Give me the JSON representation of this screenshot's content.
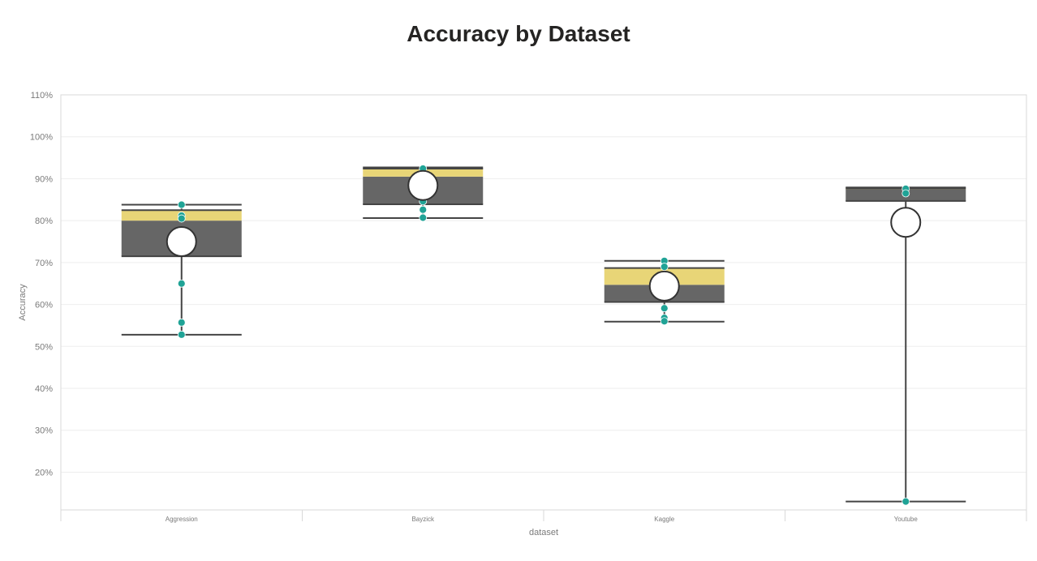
{
  "title": "Accuracy by Dataset",
  "colors": {
    "box": "#666666",
    "upper_box": "#e8d577",
    "whisker": "#444444",
    "point": "#20a396",
    "mean_fill": "#ffffff",
    "grid": "#eeeeee",
    "plot_border": "#d9d9d9"
  },
  "chart_data": {
    "type": "box",
    "title": "Accuracy by Dataset",
    "xlabel": "dataset",
    "ylabel": "Accuracy",
    "ylim": [
      11,
      110
    ],
    "yticks": [
      "20%",
      "30%",
      "40%",
      "50%",
      "60%",
      "70%",
      "80%",
      "90%",
      "100%",
      "110%"
    ],
    "ytick_values": [
      20,
      30,
      40,
      50,
      60,
      70,
      80,
      90,
      100,
      110
    ],
    "grid": true,
    "categories": [
      "Aggression",
      "Bayzick",
      "Kaggle",
      "Youtube"
    ],
    "boxes": [
      {
        "category": "Aggression",
        "min": 52.8,
        "q1": 71.5,
        "median": 80.0,
        "q3": 82.5,
        "max": 83.8,
        "mean": 75.0,
        "points": [
          83.8,
          81.2,
          80.5,
          65.0,
          55.7,
          52.8
        ]
      },
      {
        "category": "Bayzick",
        "min": 80.6,
        "q1": 83.9,
        "median": 90.5,
        "q3": 92.4,
        "max": 92.7,
        "mean": 88.4,
        "points": [
          92.4,
          84.6,
          82.6,
          80.7
        ]
      },
      {
        "category": "Kaggle",
        "min": 55.9,
        "q1": 60.6,
        "median": 64.7,
        "q3": 68.7,
        "max": 70.4,
        "mean": 64.4,
        "points": [
          70.4,
          69.0,
          59.1,
          56.8,
          56.0
        ]
      },
      {
        "category": "Youtube",
        "min": 13.0,
        "q1": 84.7,
        "median": 87.5,
        "q3": 87.7,
        "max": 87.9,
        "mean": 79.6,
        "points": [
          87.6,
          86.5,
          13.0
        ]
      }
    ]
  }
}
